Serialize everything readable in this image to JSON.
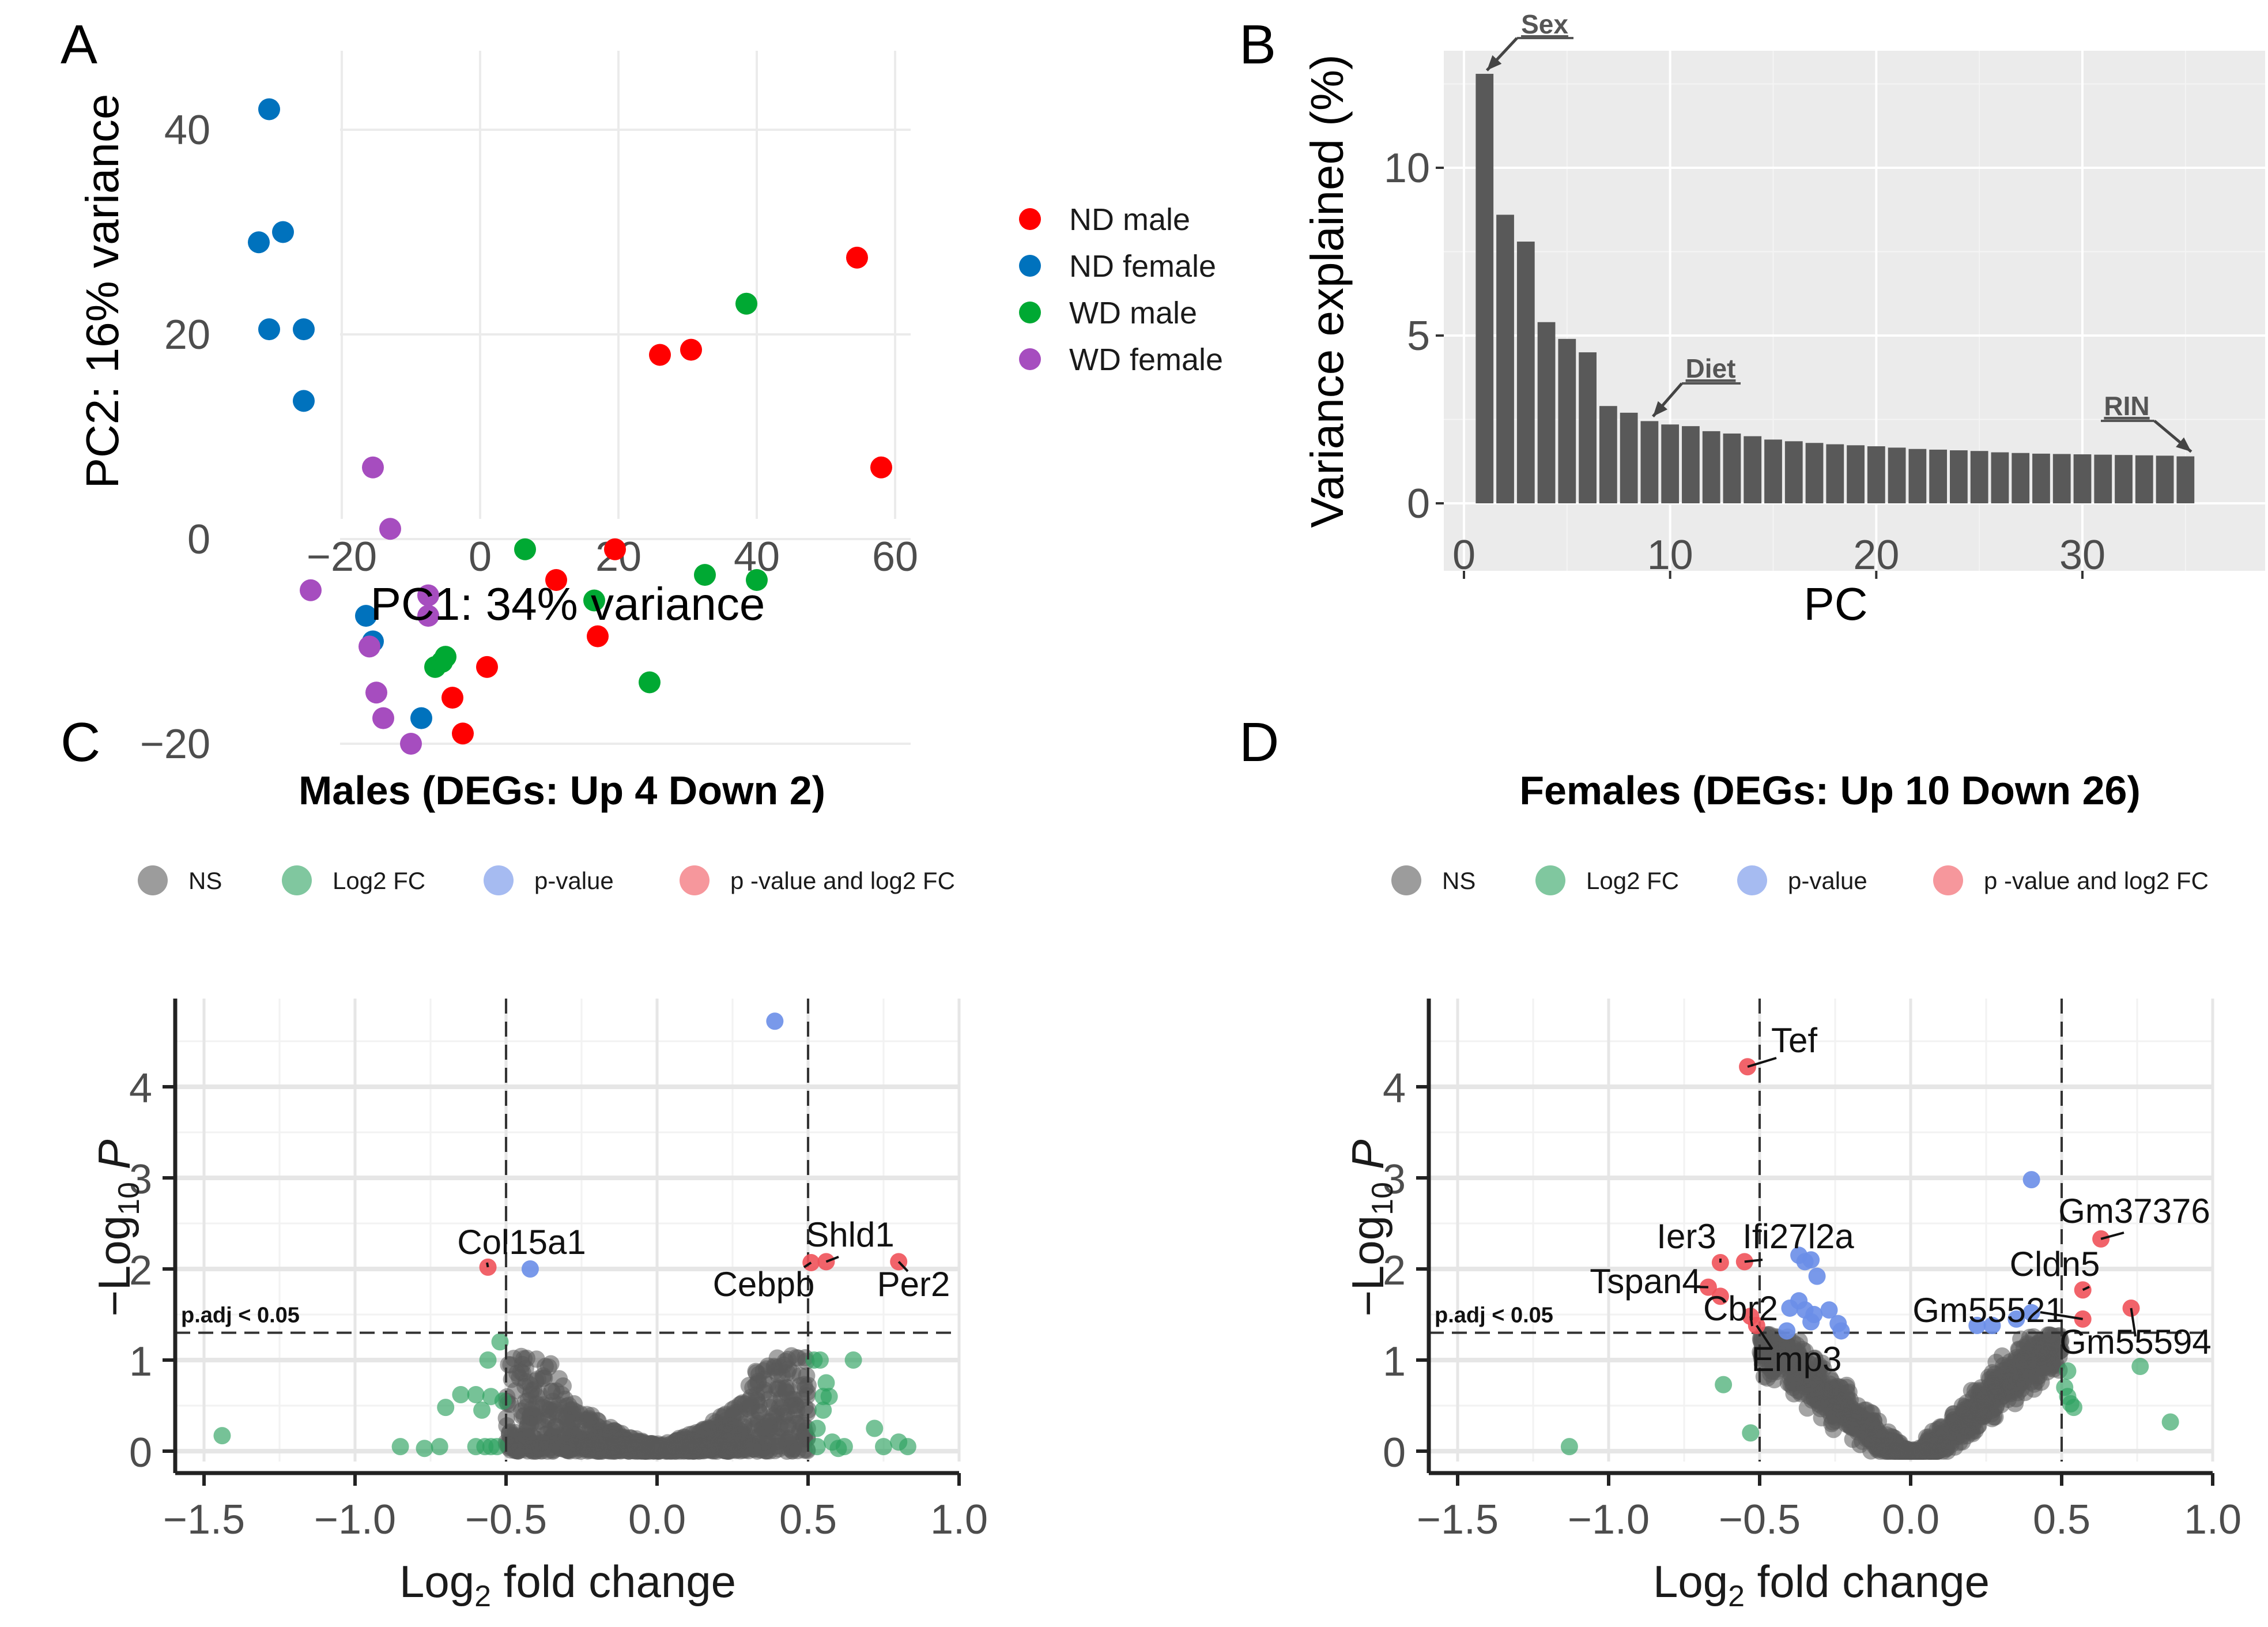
{
  "figure": {
    "panels": [
      "A",
      "B",
      "C",
      "D"
    ]
  },
  "chart_data": [
    {
      "id": "A",
      "type": "scatter",
      "title": "",
      "xlabel": "PC1: 34% variance",
      "ylabel": "PC2: 16% variance",
      "xlim": [
        -33,
        60
      ],
      "ylim": [
        -22,
        44
      ],
      "xticks": [
        -20,
        0,
        20,
        40,
        60
      ],
      "yticks": [
        -20,
        0,
        20,
        40
      ],
      "grid": true,
      "legend_position": "right",
      "series": [
        {
          "name": "ND male",
          "color": "#ff0000",
          "points": [
            [
              54.5,
              27.5
            ],
            [
              58,
              7
            ],
            [
              26,
              18
            ],
            [
              30.5,
              18.5
            ],
            [
              11,
              -4
            ],
            [
              19.5,
              -1
            ],
            [
              17,
              -9.5
            ],
            [
              1,
              -12.5
            ],
            [
              -4,
              -15.5
            ],
            [
              -2.5,
              -19
            ]
          ]
        },
        {
          "name": "ND female",
          "color": "#0072bd",
          "points": [
            [
              -30.5,
              42
            ],
            [
              -28.5,
              30
            ],
            [
              -32,
              29
            ],
            [
              -30.5,
              20.5
            ],
            [
              -25.5,
              20.5
            ],
            [
              -25.5,
              13.5
            ],
            [
              -16.5,
              -7.5
            ],
            [
              -15.5,
              -10
            ],
            [
              -8.5,
              -17.5
            ]
          ]
        },
        {
          "name": "WD male",
          "color": "#00a933",
          "points": [
            [
              38.5,
              23
            ],
            [
              6.5,
              -1
            ],
            [
              16.5,
              -6
            ],
            [
              32.5,
              -3.5
            ],
            [
              40,
              -4
            ],
            [
              24.5,
              -14
            ],
            [
              -6.5,
              -12.5
            ],
            [
              -5.5,
              -12
            ],
            [
              -5,
              -11.5
            ]
          ]
        },
        {
          "name": "WD female",
          "color": "#a64dbf",
          "points": [
            [
              -15.5,
              7
            ],
            [
              -13,
              1
            ],
            [
              -24.5,
              -5
            ],
            [
              -7.5,
              -5.5
            ],
            [
              -7.5,
              -7.5
            ],
            [
              -16,
              -10.5
            ],
            [
              -15,
              -15
            ],
            [
              -14,
              -17.5
            ],
            [
              -10,
              -20
            ]
          ]
        }
      ]
    },
    {
      "id": "B",
      "type": "bar",
      "title": "",
      "xlabel": "PC",
      "ylabel": "Variance explained (%)",
      "xlim": [
        -0.5,
        36.5
      ],
      "ylim": [
        -0.5,
        13.5
      ],
      "xticks": [
        0,
        10,
        20,
        30
      ],
      "yticks": [
        0,
        5,
        10
      ],
      "grid": true,
      "categories": [
        1,
        2,
        3,
        4,
        5,
        6,
        7,
        8,
        9,
        10,
        11,
        12,
        13,
        14,
        15,
        16,
        17,
        18,
        19,
        20,
        21,
        22,
        23,
        24,
        25,
        26,
        27,
        28,
        29,
        30,
        31,
        32,
        33,
        34,
        35
      ],
      "values": [
        12.8,
        8.6,
        7.8,
        5.4,
        4.9,
        4.5,
        2.9,
        2.7,
        2.45,
        2.35,
        2.3,
        2.15,
        2.08,
        2.0,
        1.9,
        1.85,
        1.8,
        1.76,
        1.73,
        1.7,
        1.66,
        1.62,
        1.6,
        1.58,
        1.56,
        1.52,
        1.5,
        1.48,
        1.47,
        1.46,
        1.45,
        1.44,
        1.43,
        1.42,
        1.4
      ],
      "annotations": [
        {
          "text": "Sex",
          "pc": 1
        },
        {
          "text": "Diet",
          "pc": 9
        },
        {
          "text": "RIN",
          "pc": 35
        }
      ]
    },
    {
      "id": "C",
      "type": "scatter",
      "title": "Males (DEGs: Up 4 Down 2)",
      "xlabel": "Log2 fold change",
      "ylabel": "-Log10 P",
      "xlim": [
        -1.58,
        1.0
      ],
      "ylim": [
        -0.15,
        4.9
      ],
      "xticks": [
        -1.5,
        -1.0,
        -0.5,
        0.0,
        0.5,
        1.0
      ],
      "yticks": [
        0,
        1,
        2,
        3,
        4
      ],
      "grid": true,
      "fc_cutoff": 0.5,
      "p_cutoff": 1.3,
      "threshold_label": "p.adj < 0.05",
      "legend": [
        "NS",
        "Log2 FC",
        "p-value",
        "p -value and log2 FC"
      ],
      "highlight_points": [
        {
          "x": -0.56,
          "y": 2.02,
          "cat": "both",
          "label": "Col15a1"
        },
        {
          "x": -0.42,
          "y": 2.0,
          "cat": "p"
        },
        {
          "x": 0.39,
          "y": 4.72,
          "cat": "p"
        },
        {
          "x": 0.51,
          "y": 2.07,
          "cat": "both",
          "label": "Cebpb"
        },
        {
          "x": 0.56,
          "y": 2.08,
          "cat": "both",
          "label": "Shld1"
        },
        {
          "x": 0.8,
          "y": 2.08,
          "cat": "both",
          "label": "Per2"
        }
      ],
      "fc_points": [
        [
          -1.44,
          0.17
        ],
        [
          -0.85,
          0.05
        ],
        [
          -0.77,
          0.03
        ],
        [
          -0.72,
          0.05
        ],
        [
          -0.7,
          0.48
        ],
        [
          -0.65,
          0.62
        ],
        [
          -0.6,
          0.62
        ],
        [
          -0.58,
          0.45
        ],
        [
          -0.56,
          1.0
        ],
        [
          -0.55,
          0.6
        ],
        [
          -0.53,
          0.05
        ],
        [
          -0.55,
          0.05
        ],
        [
          -0.52,
          1.2
        ],
        [
          -0.51,
          0.55
        ],
        [
          -0.6,
          0.05
        ],
        [
          -0.57,
          0.05
        ],
        [
          0.52,
          1.0
        ],
        [
          0.54,
          1.0
        ],
        [
          0.56,
          0.75
        ],
        [
          0.55,
          0.6
        ],
        [
          0.57,
          0.6
        ],
        [
          0.55,
          0.45
        ],
        [
          0.53,
          0.25
        ],
        [
          0.58,
          0.1
        ],
        [
          0.62,
          0.05
        ],
        [
          0.65,
          1.0
        ],
        [
          0.72,
          0.25
        ],
        [
          0.75,
          0.05
        ],
        [
          0.8,
          0.1
        ],
        [
          0.83,
          0.05
        ],
        [
          0.53,
          0.05
        ],
        [
          0.6,
          0.03
        ]
      ],
      "ns_cloud": {
        "x_range": [
          -0.5,
          0.5
        ],
        "y_max": 1.28,
        "shape": "bimodal"
      }
    },
    {
      "id": "D",
      "type": "scatter",
      "title": "Females (DEGs: Up 10 Down 26)",
      "xlabel": "Log2 fold change",
      "ylabel": "-Log10 P",
      "xlim": [
        -1.58,
        1.0
      ],
      "ylim": [
        -0.15,
        4.9
      ],
      "xticks": [
        -1.5,
        -1.0,
        -0.5,
        0.0,
        0.5,
        1.0
      ],
      "yticks": [
        0,
        1,
        2,
        3,
        4
      ],
      "grid": true,
      "fc_cutoff": 0.5,
      "p_cutoff": 1.3,
      "threshold_label": "p.adj < 0.05",
      "legend": [
        "NS",
        "Log2 FC",
        "p-value",
        "p -value and log2 FC"
      ],
      "highlight_points": [
        {
          "x": -0.54,
          "y": 4.22,
          "cat": "both",
          "label": "Tef"
        },
        {
          "x": -0.63,
          "y": 2.07,
          "cat": "both",
          "label": "Ier3"
        },
        {
          "x": -0.55,
          "y": 2.08,
          "cat": "both",
          "label": "Ifi27l2a"
        },
        {
          "x": -0.67,
          "y": 1.8,
          "cat": "both",
          "label": "Tspan4"
        },
        {
          "x": -0.63,
          "y": 1.7,
          "cat": "both"
        },
        {
          "x": -0.53,
          "y": 1.48,
          "cat": "both",
          "label": "Cbr2"
        },
        {
          "x": -0.51,
          "y": 1.38,
          "cat": "both",
          "label": "Emp3"
        },
        {
          "x": 0.63,
          "y": 2.33,
          "cat": "both",
          "label": "Gm37376"
        },
        {
          "x": 0.57,
          "y": 1.77,
          "cat": "both",
          "label": "Cldn5"
        },
        {
          "x": 0.57,
          "y": 1.45,
          "cat": "both",
          "label": "Gm55521"
        },
        {
          "x": 0.73,
          "y": 1.57,
          "cat": "both",
          "label": "Gm55594"
        },
        {
          "x": 0.4,
          "y": 2.98,
          "cat": "p"
        },
        {
          "x": 0.4,
          "y": 1.52,
          "cat": "p"
        },
        {
          "x": 0.35,
          "y": 1.45,
          "cat": "p"
        },
        {
          "x": 0.27,
          "y": 1.38,
          "cat": "p"
        },
        {
          "x": 0.22,
          "y": 1.38,
          "cat": "p"
        },
        {
          "x": -0.37,
          "y": 2.15,
          "cat": "p"
        },
        {
          "x": -0.35,
          "y": 2.08,
          "cat": "p"
        },
        {
          "x": -0.33,
          "y": 2.1,
          "cat": "p"
        },
        {
          "x": -0.31,
          "y": 1.92,
          "cat": "p"
        },
        {
          "x": -0.37,
          "y": 1.65,
          "cat": "p"
        },
        {
          "x": -0.4,
          "y": 1.57,
          "cat": "p"
        },
        {
          "x": -0.35,
          "y": 1.55,
          "cat": "p"
        },
        {
          "x": -0.32,
          "y": 1.5,
          "cat": "p"
        },
        {
          "x": -0.27,
          "y": 1.55,
          "cat": "p"
        },
        {
          "x": -0.24,
          "y": 1.4,
          "cat": "p"
        },
        {
          "x": -0.33,
          "y": 1.42,
          "cat": "p"
        },
        {
          "x": -0.41,
          "y": 1.32,
          "cat": "p"
        },
        {
          "x": -0.23,
          "y": 1.32,
          "cat": "p"
        }
      ],
      "fc_points": [
        [
          -1.13,
          0.05
        ],
        [
          -0.62,
          0.73
        ],
        [
          -0.53,
          0.2
        ],
        [
          0.52,
          0.88
        ],
        [
          0.52,
          0.6
        ],
        [
          0.53,
          0.52
        ],
        [
          0.54,
          0.48
        ],
        [
          0.76,
          0.93
        ],
        [
          0.86,
          0.32
        ],
        [
          0.51,
          0.7
        ]
      ],
      "ns_cloud": {
        "x_range": [
          -0.5,
          0.5
        ],
        "y_max": 1.28,
        "shape": "v"
      }
    }
  ],
  "colors": {
    "ns": "#5a5a5a",
    "fc": "#2ca25f",
    "p": "#6a8ee8",
    "both": "#f0525a",
    "panelB_bg": "#ebebeb",
    "bar": "#595959"
  }
}
